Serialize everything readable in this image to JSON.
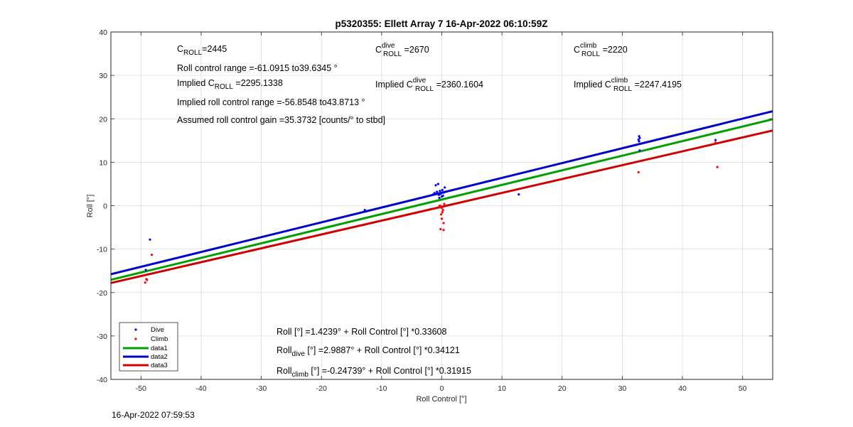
{
  "chart_data": {
    "type": "scatter",
    "title": "p5320355: Ellett Array 7 16-Apr-2022 06:10:59Z",
    "xlabel": "Roll Control [°]",
    "ylabel": "Roll [°]",
    "xlim": [
      -55,
      55
    ],
    "ylim": [
      -40,
      40
    ],
    "xticks": [
      -50,
      -40,
      -30,
      -20,
      -10,
      0,
      10,
      20,
      30,
      40,
      50
    ],
    "yticks": [
      -40,
      -30,
      -20,
      -10,
      0,
      10,
      20,
      30,
      40
    ],
    "grid": true,
    "legend_position": "bottom-left",
    "series": [
      {
        "name": "Dive",
        "kind": "points",
        "color": "#0000ff",
        "points": [
          [
            -48.5,
            -7.8
          ],
          [
            -49.2,
            -14.8
          ],
          [
            -12.8,
            -1.0
          ],
          [
            -0.5,
            2.5
          ],
          [
            -1.2,
            2.9
          ],
          [
            -0.8,
            3.2
          ],
          [
            -0.3,
            3.4
          ],
          [
            0.0,
            2.1
          ],
          [
            -0.2,
            2.7
          ],
          [
            0.3,
            3.0
          ],
          [
            0.2,
            2.3
          ],
          [
            -0.6,
            5.0
          ],
          [
            -1.0,
            4.7
          ],
          [
            0.5,
            4.2
          ],
          [
            -0.4,
            1.8
          ],
          [
            0.1,
            3.6
          ],
          [
            -1.4,
            2.6
          ],
          [
            12.8,
            2.6
          ],
          [
            32.8,
            14.8
          ],
          [
            32.9,
            15.6
          ],
          [
            32.7,
            15.2
          ],
          [
            32.8,
            16.0
          ],
          [
            32.9,
            12.7
          ],
          [
            45.5,
            15.1
          ]
        ]
      },
      {
        "name": "Climb",
        "kind": "points",
        "color": "#ff0000",
        "points": [
          [
            -48.2,
            -11.3
          ],
          [
            -49.3,
            -17.7
          ],
          [
            -49.0,
            -17.1
          ],
          [
            -49.1,
            -16.9
          ],
          [
            0.0,
            -0.5
          ],
          [
            -0.3,
            0.0
          ],
          [
            0.2,
            -1.0
          ],
          [
            -0.1,
            -2.0
          ],
          [
            0.0,
            -3.0
          ],
          [
            0.3,
            -4.0
          ],
          [
            -0.2,
            -5.4
          ],
          [
            0.3,
            -5.6
          ],
          [
            -0.4,
            -0.2
          ],
          [
            0.4,
            0.4
          ],
          [
            0.1,
            -1.5
          ],
          [
            32.7,
            7.7
          ],
          [
            45.5,
            14.5
          ],
          [
            45.8,
            8.9
          ]
        ]
      },
      {
        "name": "data1",
        "kind": "line",
        "color": "#00a000",
        "intercept": 1.4239,
        "slope": 0.33608
      },
      {
        "name": "data2",
        "kind": "line",
        "color": "#0000c8",
        "intercept": 2.9887,
        "slope": 0.34121
      },
      {
        "name": "data3",
        "kind": "line",
        "color": "#d00000",
        "intercept": -0.24739,
        "slope": 0.31915
      }
    ]
  },
  "annotations": {
    "c_roll": {
      "main": "C",
      "sub": "ROLL",
      "value": "=2445"
    },
    "roll_range": "Roll control range =-61.0915 to39.6345 °",
    "implied_c_roll": {
      "pre": "Implied C",
      "sub": "ROLL",
      "value": " =2295.1338"
    },
    "implied_range": "Implied roll control range =-56.8548 to43.8713 °",
    "gain": "Assumed roll control gain =35.3732 [counts/° to stbd]",
    "c_dive": {
      "main": "C",
      "sup": "dive",
      "sub": "ROLL",
      "value": " =2670"
    },
    "implied_c_dive": {
      "pre": "Implied C",
      "sup": "dive",
      "sub": "ROLL",
      "value": " =2360.1604"
    },
    "c_climb": {
      "main": "C",
      "sup": "climb",
      "sub": "ROLL",
      "value": " =2220"
    },
    "implied_c_climb": {
      "pre": "Implied C",
      "sup": "climb",
      "sub": "ROLL",
      "value": " =2247.4195"
    },
    "eq_all": "Roll [°] =1.4239° + Roll Control [°] *0.33608",
    "eq_dive": {
      "pre": "Roll",
      "sub": "dive",
      "post": " [°] =2.9887° + Roll Control [°] *0.34121"
    },
    "eq_climb": {
      "pre": "Roll",
      "sub": "climb",
      "post": " [°] =-0.24739° + Roll Control [°] *0.31915"
    }
  },
  "footer": "16-Apr-2022 07:59:53"
}
